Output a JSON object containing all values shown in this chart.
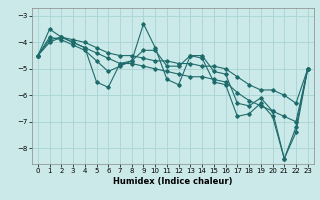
{
  "title": "",
  "xlabel": "Humidex (Indice chaleur)",
  "xlim_min": -0.5,
  "xlim_max": 23.5,
  "ylim_min": -8.6,
  "ylim_max": -2.7,
  "yticks": [
    -8,
    -7,
    -6,
    -5,
    -4,
    -3
  ],
  "xticks": [
    0,
    1,
    2,
    3,
    4,
    5,
    6,
    7,
    8,
    9,
    10,
    11,
    12,
    13,
    14,
    15,
    16,
    17,
    18,
    19,
    20,
    21,
    22,
    23
  ],
  "bg_color": "#cce9e9",
  "line_color": "#1e6b6b",
  "grid_color": "#a8d4d4",
  "series": [
    [
      -4.5,
      -3.5,
      -3.8,
      -4.0,
      -4.2,
      -5.5,
      -5.7,
      -4.8,
      -4.7,
      -3.3,
      -4.2,
      -5.4,
      -5.6,
      -4.5,
      -4.6,
      -5.5,
      -5.6,
      -6.8,
      -6.7,
      -6.3,
      -6.8,
      -8.4,
      -7.4,
      -5.0
    ],
    [
      -4.5,
      -4.0,
      -3.8,
      -4.0,
      -4.2,
      -4.4,
      -4.6,
      -4.8,
      -4.8,
      -4.9,
      -5.0,
      -5.1,
      -5.2,
      -5.3,
      -5.3,
      -5.4,
      -5.5,
      -5.9,
      -6.2,
      -6.4,
      -6.6,
      -6.8,
      -7.0,
      -5.0
    ],
    [
      -4.5,
      -3.9,
      -3.8,
      -3.9,
      -4.0,
      -4.2,
      -4.4,
      -4.5,
      -4.5,
      -4.6,
      -4.7,
      -4.7,
      -4.8,
      -4.8,
      -4.9,
      -4.9,
      -5.0,
      -5.3,
      -5.6,
      -5.8,
      -5.8,
      -6.0,
      -6.3,
      -5.0
    ],
    [
      -4.5,
      -3.8,
      -3.9,
      -4.1,
      -4.3,
      -4.7,
      -5.1,
      -4.9,
      -4.7,
      -4.3,
      -4.3,
      -4.9,
      -4.9,
      -4.5,
      -4.5,
      -5.1,
      -5.2,
      -6.3,
      -6.4,
      -6.1,
      -6.6,
      -8.4,
      -7.2,
      -5.0
    ]
  ]
}
